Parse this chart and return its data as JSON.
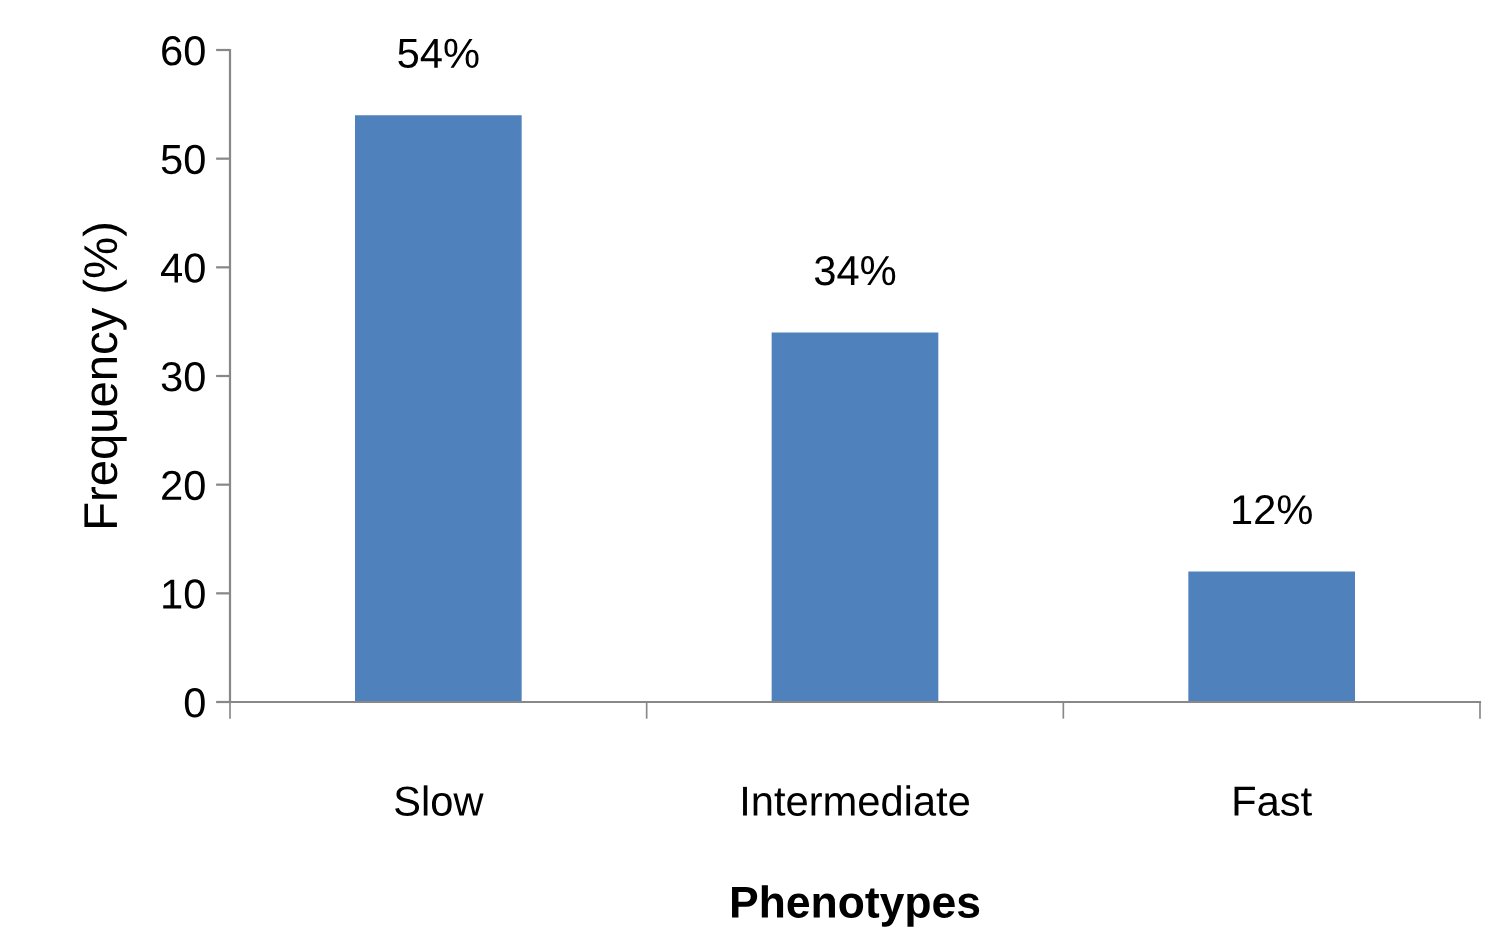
{
  "chart_data": {
    "type": "bar",
    "categories": [
      "Slow",
      "Intermediate",
      "Fast"
    ],
    "values": [
      54,
      34,
      12
    ],
    "value_labels": [
      "54%",
      "34%",
      "12%"
    ],
    "color": "#4f81bd",
    "xlabel": "Phenotypes",
    "ylabel": "Frequency (%)",
    "ylim": [
      0,
      60
    ],
    "yticks": [
      0,
      10,
      20,
      30,
      40,
      50,
      60
    ],
    "grid": false,
    "legend": false
  }
}
